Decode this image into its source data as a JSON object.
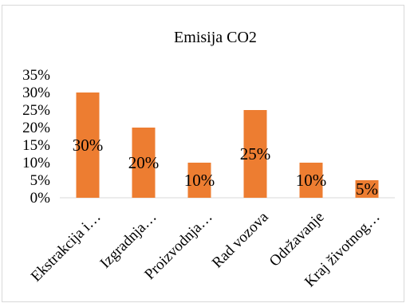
{
  "chart_data": {
    "type": "bar",
    "title": "Emisija CO2",
    "categories": [
      "Ekstrakcija i…",
      "Izgradnja…",
      "Proizvodnja…",
      "Rad vozova",
      "Održavanje",
      "Kraj životnog…"
    ],
    "values": [
      30,
      20,
      10,
      25,
      10,
      5
    ],
    "data_labels": [
      "30%",
      "20%",
      "10%",
      "25%",
      "10%",
      "5%"
    ],
    "y_ticks": [
      "0%",
      "5%",
      "10%",
      "15%",
      "20%",
      "25%",
      "30%",
      "35%"
    ],
    "ylim": [
      0,
      35
    ],
    "xlabel": "",
    "ylabel": "",
    "grid": false,
    "legend": "none",
    "bar_color": "#ED7D31"
  }
}
